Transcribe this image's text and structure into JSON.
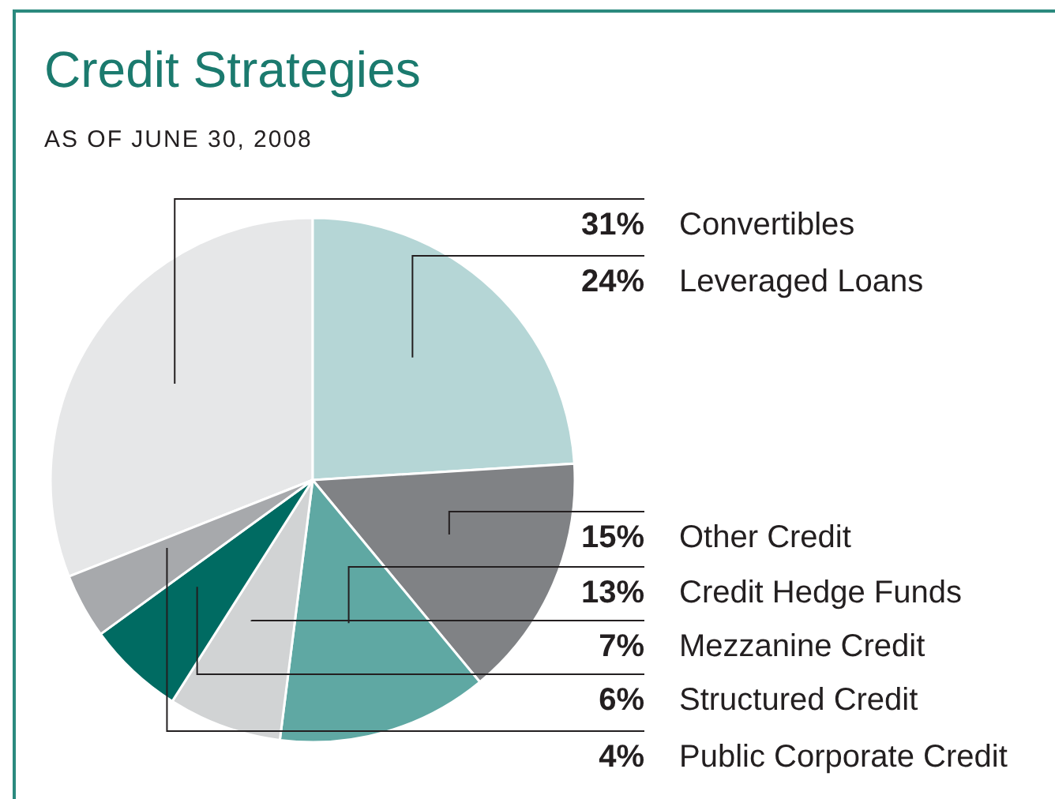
{
  "chart_data": {
    "type": "pie",
    "title": "Credit Strategies",
    "subtitle": "AS OF JUNE 30, 2008",
    "categories": [
      "Convertibles",
      "Leveraged Loans",
      "Other Credit",
      "Credit Hedge Funds",
      "Mezzanine Credit",
      "Structured Credit",
      "Public Corporate Credit"
    ],
    "values": [
      31,
      24,
      15,
      13,
      7,
      6,
      4
    ],
    "value_labels": [
      "31%",
      "24%",
      "15%",
      "13%",
      "7%",
      "6%",
      "4%"
    ],
    "colors": [
      "#e6e7e8",
      "#b5d6d6",
      "#808285",
      "#5fa8a3",
      "#d1d3d4",
      "#006b62",
      "#a7a9ac"
    ]
  }
}
